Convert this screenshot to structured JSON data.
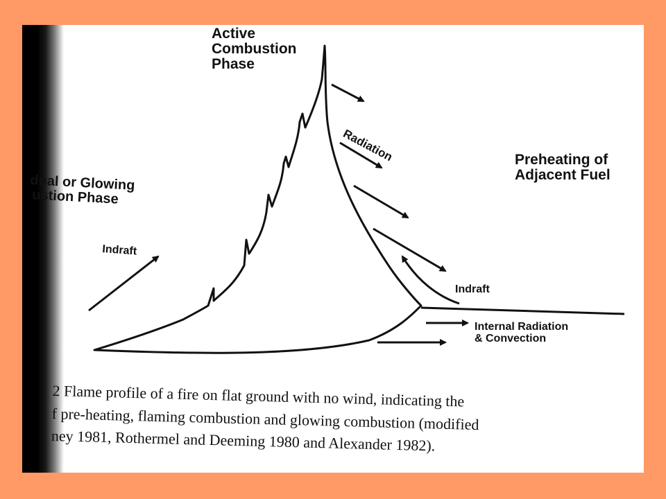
{
  "labels": {
    "active_combustion": [
      "Active",
      "Combustion",
      "Phase"
    ],
    "radiation": "Radiation",
    "preheating": [
      "Preheating of",
      "Adjacent Fuel"
    ],
    "glowing_phase": [
      "dual or Glowing",
      "ustion Phase"
    ],
    "indraft_left": "Indraft",
    "indraft_right": "Indraft",
    "internal_radiation": [
      "Internal Radiation",
      "& Convection"
    ]
  },
  "caption": [
    "2   Flame profile of a fire on flat ground with no wind, indicating the",
    "f pre-heating, flaming combustion and glowing combustion (modified",
    "ney 1981, Rothermel and Deeming 1980 and Alexander 1982)."
  ],
  "colors": {
    "frame": "#FF9966",
    "line": "#111111"
  }
}
